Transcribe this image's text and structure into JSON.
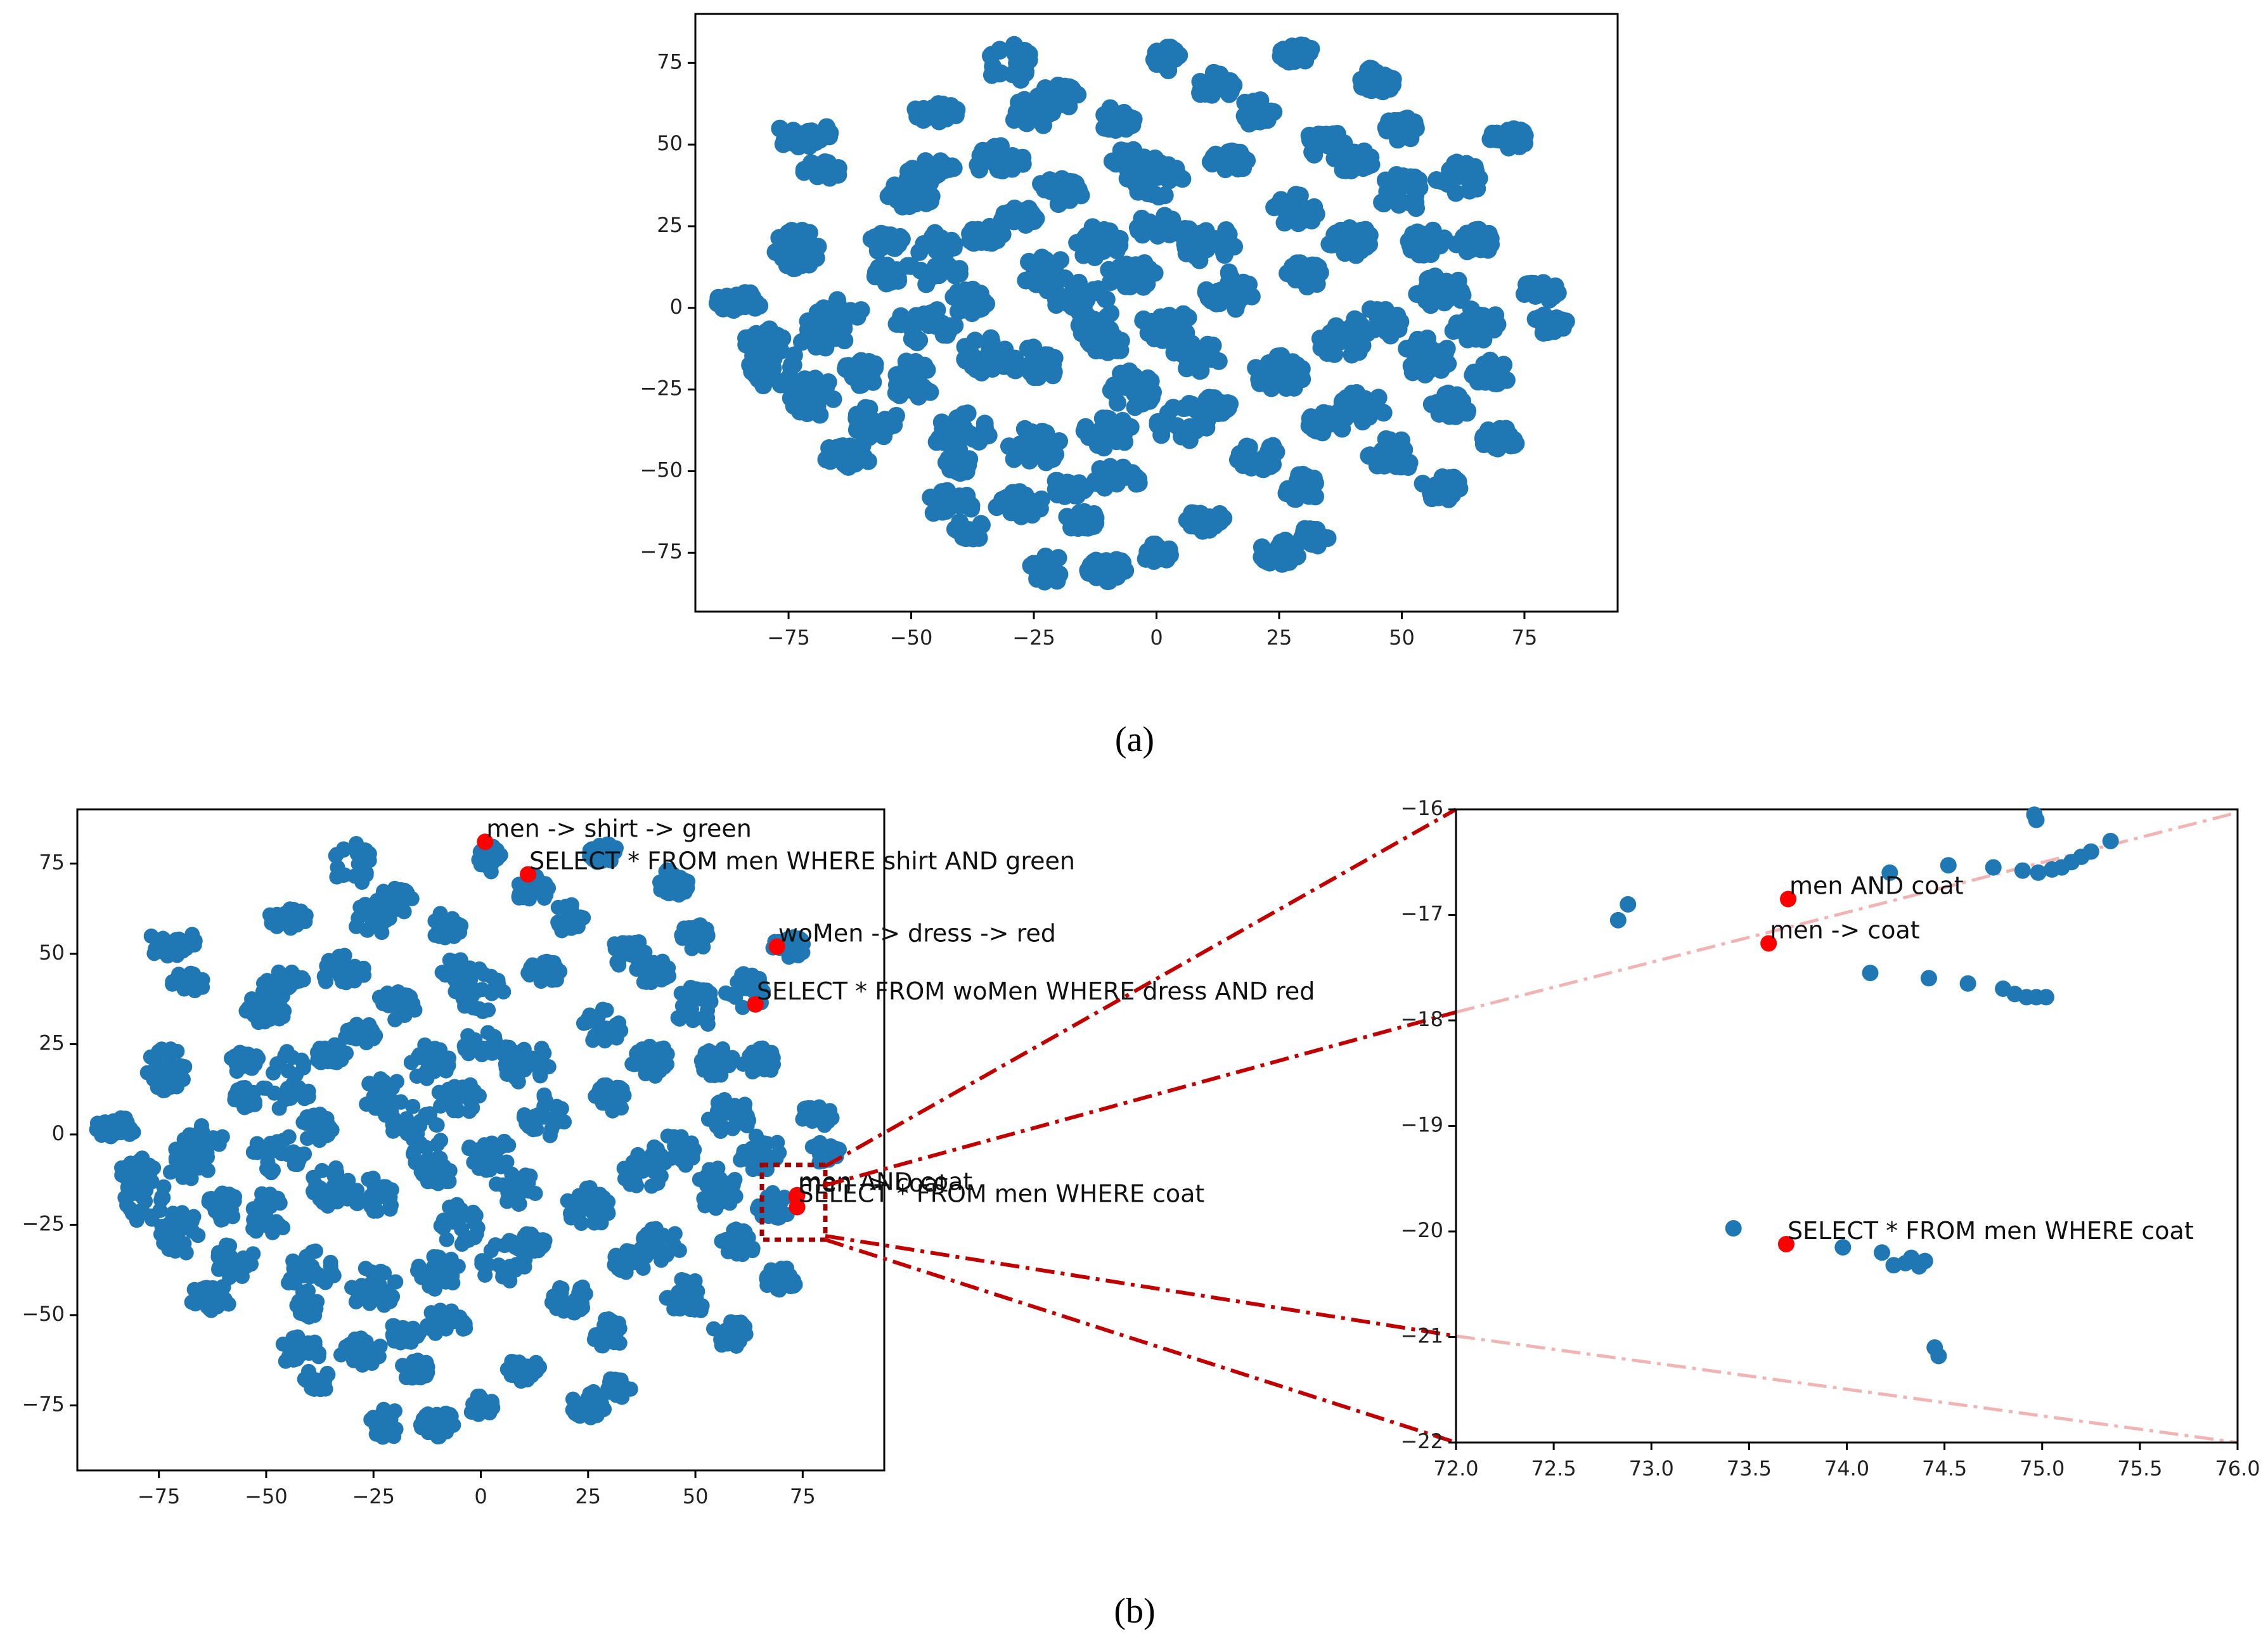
{
  "colors": {
    "cluster": "#1f77b4",
    "highlight": "#ff0000",
    "connector": "#c00000",
    "connector_faint": "#f0b4b4",
    "axis": "#000000"
  },
  "panel_labels": {
    "a": "(a)",
    "b": "(b)"
  },
  "chart_data": [
    {
      "id": "a",
      "type": "scatter",
      "description_role": "t-SNE embedding of all queries",
      "xlim": [
        -94,
        94
      ],
      "ylim": [
        -93,
        90
      ],
      "xticks": [
        -75,
        -50,
        -25,
        0,
        25,
        50,
        75
      ],
      "yticks": [
        -75,
        -50,
        -25,
        0,
        25,
        50,
        75
      ],
      "tick_labels_x": [
        "−75",
        "−50",
        "−25",
        "0",
        "25",
        "50",
        "75"
      ],
      "tick_labels_y": [
        "−75",
        "−50",
        "−25",
        "0",
        "25",
        "50",
        "75"
      ],
      "clusters": [
        [
          -85,
          2,
          5,
          3
        ],
        [
          -78,
          -18,
          5,
          7
        ],
        [
          -70,
          -27,
          5,
          6
        ],
        [
          -68,
          -8,
          5,
          5
        ],
        [
          -73,
          18,
          5,
          6
        ],
        [
          -65,
          -2,
          5,
          5
        ],
        [
          -72,
          53,
          6,
          4
        ],
        [
          -68,
          42,
          4,
          3
        ],
        [
          -63,
          -45,
          5,
          4
        ],
        [
          -57,
          -35,
          5,
          5
        ],
        [
          -50,
          -22,
          5,
          6
        ],
        [
          -47,
          -5,
          6,
          6
        ],
        [
          -45,
          15,
          6,
          9
        ],
        [
          -50,
          35,
          5,
          5
        ],
        [
          -46,
          42,
          5,
          4
        ],
        [
          -55,
          20,
          4,
          3
        ],
        [
          -45,
          60,
          5,
          3
        ],
        [
          -40,
          -38,
          6,
          6
        ],
        [
          -35,
          -15,
          5,
          6
        ],
        [
          -35,
          22,
          4,
          3
        ],
        [
          -32,
          45,
          5,
          5
        ],
        [
          -28,
          28,
          4,
          3
        ],
        [
          -25,
          -18,
          5,
          6
        ],
        [
          -25,
          -42,
          6,
          6
        ],
        [
          -28,
          -60,
          5,
          4
        ],
        [
          -42,
          -60,
          5,
          4
        ],
        [
          -38,
          -68,
          4,
          3
        ],
        [
          -18,
          -55,
          4,
          3
        ],
        [
          -22,
          10,
          6,
          6
        ],
        [
          -20,
          35,
          5,
          5
        ],
        [
          -22,
          -80,
          4,
          4
        ],
        [
          -15,
          0,
          6,
          8
        ],
        [
          -12,
          20,
          5,
          5
        ],
        [
          -10,
          -38,
          5,
          5
        ],
        [
          -8,
          -52,
          5,
          4
        ],
        [
          -5,
          -25,
          5,
          6
        ],
        [
          -5,
          10,
          5,
          5
        ],
        [
          -30,
          75,
          5,
          6
        ],
        [
          -20,
          65,
          5,
          4
        ],
        [
          -10,
          -80,
          4,
          4
        ],
        [
          0,
          40,
          6,
          6
        ],
        [
          2,
          -5,
          5,
          5
        ],
        [
          5,
          -35,
          6,
          6
        ],
        [
          8,
          -15,
          5,
          5
        ],
        [
          10,
          20,
          6,
          6
        ],
        [
          15,
          45,
          4,
          3
        ],
        [
          15,
          5,
          5,
          6
        ],
        [
          10,
          -65,
          4,
          4
        ],
        [
          20,
          -45,
          5,
          5
        ],
        [
          25,
          -20,
          5,
          6
        ],
        [
          28,
          30,
          5,
          5
        ],
        [
          30,
          10,
          4,
          4
        ],
        [
          25,
          -75,
          4,
          4
        ],
        [
          30,
          -55,
          4,
          4
        ],
        [
          35,
          50,
          5,
          5
        ],
        [
          38,
          -10,
          5,
          5
        ],
        [
          40,
          20,
          5,
          5
        ],
        [
          42,
          -30,
          5,
          5
        ],
        [
          45,
          -5,
          5,
          5
        ],
        [
          48,
          -45,
          5,
          5
        ],
        [
          50,
          35,
          5,
          6
        ],
        [
          55,
          20,
          4,
          4
        ],
        [
          55,
          -15,
          5,
          6
        ],
        [
          58,
          5,
          5,
          5
        ],
        [
          60,
          -30,
          4,
          4
        ],
        [
          65,
          -5,
          5,
          5
        ],
        [
          62,
          40,
          5,
          5
        ],
        [
          65,
          20,
          4,
          4
        ],
        [
          68,
          -20,
          4,
          4
        ],
        [
          70,
          -40,
          4,
          4
        ],
        [
          72,
          52,
          4,
          3
        ],
        [
          78,
          5,
          4,
          3
        ],
        [
          80,
          -5,
          4,
          3
        ],
        [
          2,
          76,
          3,
          4
        ],
        [
          12,
          68,
          4,
          4
        ],
        [
          -8,
          58,
          4,
          4
        ],
        [
          45,
          70,
          4,
          4
        ],
        [
          28,
          78,
          4,
          3
        ],
        [
          -25,
          60,
          5,
          5
        ],
        [
          -5,
          45,
          4,
          4
        ],
        [
          20,
          60,
          4,
          4
        ],
        [
          40,
          45,
          4,
          4
        ],
        [
          50,
          55,
          4,
          4
        ],
        [
          -60,
          -20,
          4,
          4
        ],
        [
          -80,
          -10,
          4,
          4
        ],
        [
          -55,
          10,
          3,
          3
        ],
        [
          -38,
          2,
          4,
          4
        ],
        [
          -10,
          -10,
          4,
          4
        ],
        [
          -15,
          -65,
          4,
          3
        ],
        [
          0,
          -75,
          3,
          3
        ],
        [
          35,
          -35,
          4,
          4
        ],
        [
          58,
          -55,
          4,
          4
        ],
        [
          32,
          -70,
          3,
          3
        ],
        [
          0,
          25,
          4,
          4
        ],
        [
          12,
          -30,
          3,
          3
        ],
        [
          -40,
          -48,
          3,
          3
        ]
      ],
      "highlights": [],
      "annotations": []
    },
    {
      "id": "b-left",
      "type": "scatter",
      "description_role": "t-SNE embedding with highlighted query pairs",
      "xlim": [
        -94,
        94
      ],
      "ylim": [
        -93,
        90
      ],
      "xticks": [
        -75,
        -50,
        -25,
        0,
        25,
        50,
        75
      ],
      "yticks": [
        -75,
        -50,
        -25,
        0,
        25,
        50,
        75
      ],
      "tick_labels_x": [
        "−75",
        "−50",
        "−25",
        "0",
        "25",
        "50",
        "75"
      ],
      "tick_labels_y": [
        "−75",
        "−50",
        "−25",
        "0",
        "25",
        "50",
        "75"
      ],
      "highlights": [
        {
          "x": 1,
          "y": 81
        },
        {
          "x": 11,
          "y": 72
        },
        {
          "x": 69,
          "y": 52
        },
        {
          "x": 64,
          "y": 36
        },
        {
          "x": 73.6,
          "y": -17.2
        },
        {
          "x": 73.7,
          "y": -16.8
        },
        {
          "x": 73.7,
          "y": -20.1
        }
      ],
      "annotations": [
        {
          "x": 1,
          "y": 81,
          "text": "men -> shirt -> green"
        },
        {
          "x": 11,
          "y": 72,
          "text": "SELECT * FROM men WHERE shirt AND green"
        },
        {
          "x": 69,
          "y": 52,
          "text": "woMen -> dress -> red"
        },
        {
          "x": 64,
          "y": 36,
          "text": "SELECT * FROM woMen WHERE dress AND red"
        },
        {
          "x": 73.6,
          "y": -17.2,
          "text": "men -> coat"
        },
        {
          "x": 73.7,
          "y": -16.8,
          "text": "men AND coat"
        },
        {
          "x": 73.7,
          "y": -20.1,
          "text": "SELECT * FROM men WHERE coat"
        }
      ],
      "zoom_box": {
        "x": [
          72,
          76
        ],
        "y": [
          -22,
          -16
        ]
      }
    },
    {
      "id": "b-right",
      "type": "scatter",
      "description_role": "zoomed region of b-left",
      "xlim": [
        72,
        76
      ],
      "ylim": [
        -22,
        -16
      ],
      "xticks": [
        72.0,
        72.5,
        73.0,
        73.5,
        74.0,
        74.5,
        75.0,
        75.5,
        76.0
      ],
      "yticks": [
        -16,
        -17,
        -18,
        -19,
        -20,
        -21,
        -22
      ],
      "tick_labels_x": [
        "72.0",
        "72.5",
        "73.0",
        "73.5",
        "74.0",
        "74.5",
        "75.0",
        "75.5",
        "76.0"
      ],
      "tick_labels_y": [
        "−16",
        "−17",
        "−18",
        "−19",
        "−20",
        "−21",
        "−22"
      ],
      "points": [
        {
          "x": 72.83,
          "y": -17.05
        },
        {
          "x": 72.88,
          "y": -16.9
        },
        {
          "x": 74.22,
          "y": -16.6
        },
        {
          "x": 74.52,
          "y": -16.53
        },
        {
          "x": 74.75,
          "y": -16.55
        },
        {
          "x": 74.9,
          "y": -16.58
        },
        {
          "x": 74.98,
          "y": -16.6
        },
        {
          "x": 75.05,
          "y": -16.57
        },
        {
          "x": 75.1,
          "y": -16.55
        },
        {
          "x": 75.15,
          "y": -16.5
        },
        {
          "x": 75.2,
          "y": -16.45
        },
        {
          "x": 75.25,
          "y": -16.4
        },
        {
          "x": 75.35,
          "y": -16.3
        },
        {
          "x": 74.96,
          "y": -16.05
        },
        {
          "x": 74.97,
          "y": -16.1
        },
        {
          "x": 74.12,
          "y": -17.55
        },
        {
          "x": 74.42,
          "y": -17.6
        },
        {
          "x": 74.62,
          "y": -17.65
        },
        {
          "x": 74.8,
          "y": -17.7
        },
        {
          "x": 74.86,
          "y": -17.75
        },
        {
          "x": 74.92,
          "y": -17.78
        },
        {
          "x": 74.97,
          "y": -17.78
        },
        {
          "x": 75.02,
          "y": -17.78
        },
        {
          "x": 73.42,
          "y": -19.97
        },
        {
          "x": 73.98,
          "y": -20.15
        },
        {
          "x": 74.18,
          "y": -20.2
        },
        {
          "x": 74.24,
          "y": -20.32
        },
        {
          "x": 74.3,
          "y": -20.3
        },
        {
          "x": 74.33,
          "y": -20.25
        },
        {
          "x": 74.37,
          "y": -20.33
        },
        {
          "x": 74.4,
          "y": -20.28
        },
        {
          "x": 74.45,
          "y": -21.1
        },
        {
          "x": 74.47,
          "y": -21.18
        }
      ],
      "highlights": [
        {
          "x": 73.7,
          "y": -16.85
        },
        {
          "x": 73.6,
          "y": -17.27
        },
        {
          "x": 73.69,
          "y": -20.12
        }
      ],
      "annotations": [
        {
          "x": 73.7,
          "y": -16.85,
          "text": "men AND coat"
        },
        {
          "x": 73.6,
          "y": -17.27,
          "text": "men -> coat"
        },
        {
          "x": 73.69,
          "y": -20.12,
          "text": "SELECT * FROM men WHERE coat"
        }
      ]
    }
  ]
}
